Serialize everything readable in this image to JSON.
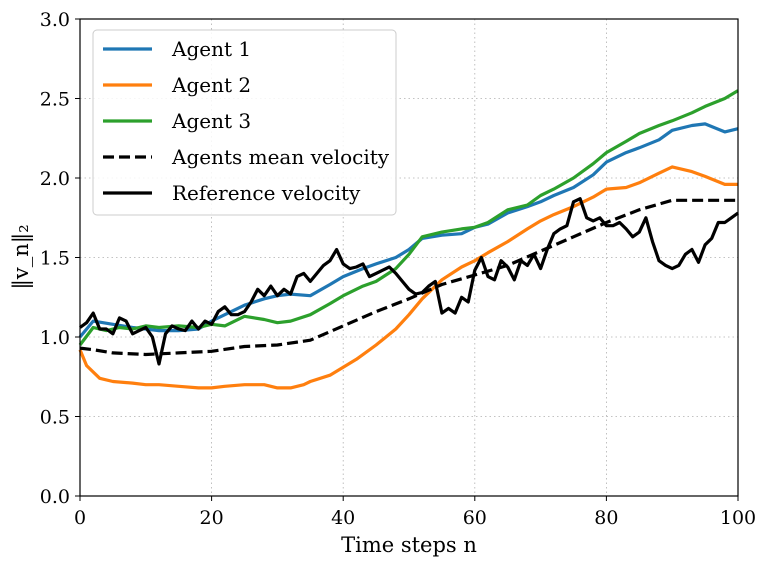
{
  "chart_data": {
    "type": "line",
    "title": "",
    "xlabel": "Time steps n",
    "ylabel": "‖v_n‖₂",
    "xlim": [
      0,
      100
    ],
    "ylim": [
      0.0,
      3.0
    ],
    "x_ticks": [
      "0",
      "20",
      "40",
      "60",
      "80",
      "100"
    ],
    "y_ticks": [
      "0.0",
      "0.5",
      "1.0",
      "1.5",
      "2.0",
      "2.5",
      "3.0"
    ],
    "grid": true,
    "legend_position": "upper-left",
    "series": [
      {
        "name": "Agent 1",
        "color": "#1f77b4",
        "style": "solid",
        "x": [
          0,
          2,
          5,
          8,
          10,
          12,
          15,
          18,
          20,
          22,
          25,
          28,
          30,
          32,
          35,
          38,
          40,
          43,
          45,
          48,
          50,
          52,
          55,
          58,
          60,
          62,
          65,
          68,
          70,
          72,
          75,
          78,
          80,
          83,
          85,
          88,
          90,
          93,
          95,
          98,
          100
        ],
        "y": [
          1.0,
          1.1,
          1.08,
          1.06,
          1.05,
          1.04,
          1.04,
          1.05,
          1.1,
          1.14,
          1.2,
          1.24,
          1.26,
          1.27,
          1.26,
          1.33,
          1.38,
          1.43,
          1.46,
          1.5,
          1.55,
          1.62,
          1.64,
          1.65,
          1.69,
          1.71,
          1.78,
          1.82,
          1.85,
          1.89,
          1.94,
          2.02,
          2.1,
          2.16,
          2.19,
          2.24,
          2.3,
          2.33,
          2.34,
          2.29,
          2.31
        ]
      },
      {
        "name": "Agent 2",
        "color": "#ff7f0e",
        "style": "solid",
        "x": [
          0,
          1,
          3,
          5,
          8,
          10,
          12,
          15,
          18,
          20,
          22,
          25,
          28,
          30,
          32,
          34,
          35,
          38,
          40,
          42,
          45,
          48,
          50,
          52,
          55,
          58,
          60,
          62,
          65,
          68,
          70,
          72,
          75,
          78,
          80,
          83,
          85,
          88,
          90,
          93,
          95,
          98,
          100
        ],
        "y": [
          0.92,
          0.82,
          0.74,
          0.72,
          0.71,
          0.7,
          0.7,
          0.69,
          0.68,
          0.68,
          0.69,
          0.7,
          0.7,
          0.68,
          0.68,
          0.7,
          0.72,
          0.76,
          0.81,
          0.86,
          0.95,
          1.05,
          1.14,
          1.24,
          1.36,
          1.44,
          1.48,
          1.53,
          1.6,
          1.68,
          1.73,
          1.77,
          1.82,
          1.88,
          1.93,
          1.94,
          1.97,
          2.03,
          2.07,
          2.04,
          2.01,
          1.96,
          1.96
        ]
      },
      {
        "name": "Agent 3",
        "color": "#2ca02c",
        "style": "solid",
        "x": [
          0,
          2,
          4,
          6,
          8,
          10,
          12,
          15,
          18,
          20,
          22,
          25,
          28,
          30,
          32,
          35,
          38,
          40,
          43,
          45,
          48,
          50,
          52,
          55,
          58,
          60,
          62,
          65,
          68,
          70,
          72,
          75,
          78,
          80,
          83,
          85,
          88,
          90,
          93,
          95,
          98,
          100
        ],
        "y": [
          0.95,
          1.06,
          1.04,
          1.06,
          1.05,
          1.07,
          1.06,
          1.07,
          1.06,
          1.08,
          1.07,
          1.13,
          1.11,
          1.09,
          1.1,
          1.14,
          1.21,
          1.26,
          1.32,
          1.35,
          1.43,
          1.52,
          1.63,
          1.66,
          1.68,
          1.69,
          1.72,
          1.8,
          1.83,
          1.89,
          1.93,
          2.0,
          2.09,
          2.16,
          2.23,
          2.28,
          2.33,
          2.36,
          2.41,
          2.45,
          2.5,
          2.55
        ]
      },
      {
        "name": "Agents mean velocity",
        "color": "#000000",
        "style": "dashed",
        "x": [
          0,
          2,
          5,
          10,
          15,
          20,
          25,
          30,
          35,
          40,
          45,
          50,
          55,
          60,
          65,
          70,
          75,
          80,
          85,
          90,
          95,
          100
        ],
        "y": [
          0.93,
          0.92,
          0.9,
          0.89,
          0.9,
          0.91,
          0.94,
          0.95,
          0.98,
          1.07,
          1.16,
          1.24,
          1.33,
          1.39,
          1.45,
          1.54,
          1.63,
          1.72,
          1.8,
          1.86,
          1.86,
          1.86
        ]
      },
      {
        "name": "Reference velocity",
        "color": "#000000",
        "style": "solid",
        "x": [
          0,
          1,
          2,
          3,
          4,
          5,
          6,
          7,
          8,
          9,
          10,
          11,
          12,
          13,
          14,
          15,
          16,
          17,
          18,
          19,
          20,
          21,
          22,
          23,
          24,
          25,
          26,
          27,
          28,
          29,
          30,
          31,
          32,
          33,
          34,
          35,
          36,
          37,
          38,
          39,
          40,
          41,
          42,
          43,
          44,
          45,
          46,
          47,
          48,
          49,
          50,
          51,
          52,
          53,
          54,
          55,
          56,
          57,
          58,
          59,
          60,
          61,
          62,
          63,
          64,
          65,
          66,
          67,
          68,
          69,
          70,
          71,
          72,
          73,
          74,
          75,
          76,
          77,
          78,
          79,
          80,
          81,
          82,
          83,
          84,
          85,
          86,
          87,
          88,
          89,
          90,
          91,
          92,
          93,
          94,
          95,
          96,
          97,
          98,
          99,
          100
        ],
        "y": [
          1.06,
          1.09,
          1.15,
          1.05,
          1.05,
          1.02,
          1.12,
          1.1,
          1.02,
          1.04,
          1.06,
          1.0,
          0.83,
          1.02,
          1.07,
          1.05,
          1.04,
          1.1,
          1.05,
          1.1,
          1.08,
          1.16,
          1.19,
          1.14,
          1.14,
          1.16,
          1.22,
          1.3,
          1.26,
          1.32,
          1.26,
          1.3,
          1.27,
          1.38,
          1.4,
          1.35,
          1.4,
          1.45,
          1.48,
          1.55,
          1.46,
          1.43,
          1.44,
          1.46,
          1.38,
          1.4,
          1.42,
          1.44,
          1.4,
          1.35,
          1.3,
          1.27,
          1.28,
          1.32,
          1.35,
          1.15,
          1.18,
          1.15,
          1.25,
          1.22,
          1.42,
          1.5,
          1.38,
          1.36,
          1.48,
          1.44,
          1.36,
          1.48,
          1.45,
          1.52,
          1.43,
          1.55,
          1.65,
          1.68,
          1.7,
          1.85,
          1.87,
          1.75,
          1.73,
          1.75,
          1.7,
          1.7,
          1.72,
          1.68,
          1.63,
          1.66,
          1.75,
          1.6,
          1.48,
          1.45,
          1.43,
          1.45,
          1.52,
          1.55,
          1.47,
          1.58,
          1.62,
          1.72,
          1.72,
          1.75,
          1.78
        ]
      }
    ]
  }
}
